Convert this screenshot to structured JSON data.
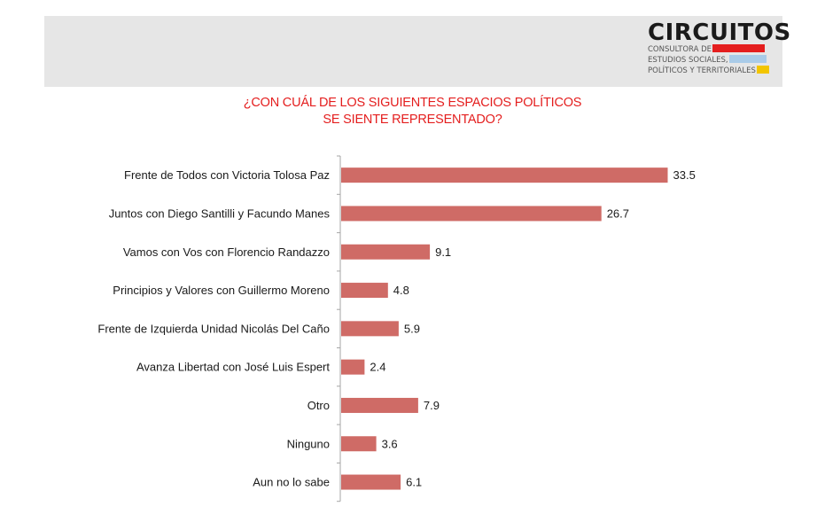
{
  "logo": {
    "name": "CIRCUITOS",
    "lines": [
      "CONSULTORA DE",
      "ESTUDIOS SOCIALES,",
      "POLÍTICOS Y TERRITORIALES"
    ],
    "colors": [
      "#e41e1e",
      "#a9cbe8",
      "#f2c500"
    ]
  },
  "chart_data": {
    "type": "bar",
    "orientation": "horizontal",
    "title_lines": [
      "¿CON CUÁL DE LOS SIGUIENTES ESPACIOS POLÍTICOS",
      "SE SIENTE REPRESENTADO?"
    ],
    "categories": [
      "Frente de Todos  con Victoria Tolosa Paz",
      "Juntos con Diego Santilli y Facundo Manes",
      "Vamos con Vos con Florencio Randazzo",
      "Principios y Valores con Guillermo Moreno",
      "Frente de Izquierda Unidad Nicolás Del Caño",
      "Avanza Libertad con José Luis Espert",
      "Otro",
      "Ninguno",
      "Aun no lo sabe"
    ],
    "values": [
      33.5,
      26.7,
      9.1,
      4.8,
      5.9,
      2.4,
      7.9,
      3.6,
      6.1
    ],
    "xlim": [
      0,
      36
    ],
    "bar_color": "#cf6b66",
    "grid": false,
    "legend": "none"
  }
}
